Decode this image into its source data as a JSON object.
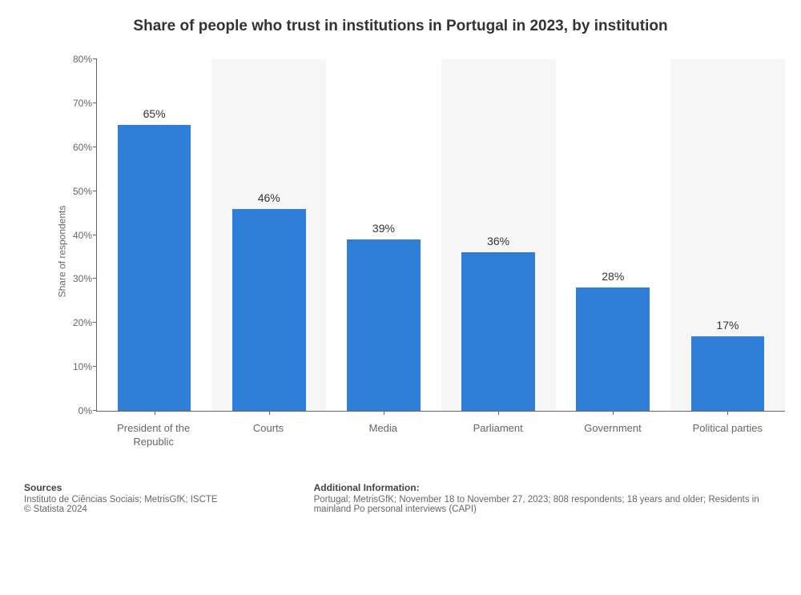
{
  "title": "Share of people who trust in institutions in Portugal in 2023, by institution",
  "chart": {
    "type": "bar",
    "y_axis_label": "Share of respondents",
    "y_max": 80,
    "y_tick_step": 10,
    "y_tick_suffix": "%",
    "categories": [
      "President of the Republic",
      "Courts",
      "Media",
      "Parliament",
      "Government",
      "Political parties"
    ],
    "values": [
      65,
      46,
      39,
      36,
      28,
      17
    ],
    "value_suffix": "%",
    "bar_color": "#2f7ed8",
    "band_colors": [
      "#ffffff",
      "#f6f6f6"
    ],
    "axis_color": "#666666",
    "title_fontsize": 19,
    "title_color": "#333333",
    "label_fontsize": 13,
    "value_label_fontsize": 14,
    "background_color": "#ffffff",
    "bar_width_ratio": 0.64
  },
  "footer": {
    "sources_title": "Sources",
    "sources_line1": "Instituto de Ciências Sociais; MetrisGfK; ISCTE",
    "sources_line2": "© Statista 2024",
    "info_title": "Additional Information:",
    "info_text": "Portugal; MetrisGfK; November 18 to November 27, 2023; 808 respondents; 18 years and older; Residents in mainland Po personal interviews (CAPI)"
  }
}
